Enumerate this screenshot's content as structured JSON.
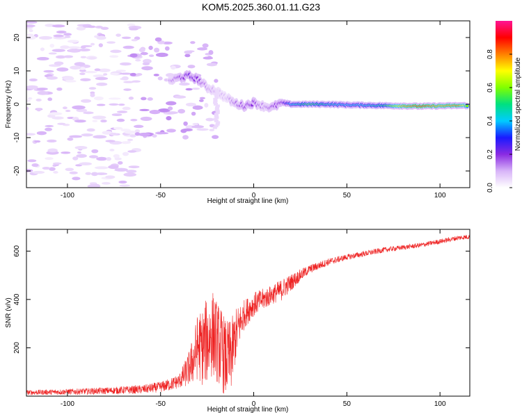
{
  "title": "KOM5.2025.360.01.11.G23",
  "colors": {
    "snr_line": "#ee2222",
    "frame": "#000000"
  },
  "chart_data": [
    {
      "type": "heatmap",
      "title": "KOM5.2025.360.01.11.G23",
      "xlabel": "Height of straight line (km)",
      "ylabel": "Frequency (Hz)",
      "xlim": [
        -122,
        116
      ],
      "ylim": [
        -25,
        25
      ],
      "xticks": [
        -100,
        -50,
        0,
        50,
        100
      ],
      "yticks": [
        -20,
        -10,
        0,
        10,
        20
      ],
      "colorbar": {
        "label": "Normalized spectral amplitude",
        "range": [
          0,
          1
        ],
        "ticks": [
          "0.0",
          "0.2",
          "0.4",
          "0.6",
          "0.8"
        ],
        "tick_values": [
          0,
          0.2,
          0.4,
          0.6,
          0.8
        ],
        "colormap": [
          "#ffffff",
          "#d8b4f8",
          "#8a2be2",
          "#1a1aff",
          "#00ccff",
          "#00e080",
          "#80ff00",
          "#ffff00",
          "#ff8000",
          "#ff0000",
          "#ff1493"
        ]
      },
      "ridge": {
        "x": [
          -45,
          -40,
          -35,
          -30,
          -25,
          -20,
          -15,
          -10,
          -5,
          0,
          5,
          10,
          15,
          20,
          30,
          40,
          50,
          60,
          70,
          80,
          90,
          100,
          110,
          115
        ],
        "freq": [
          7,
          8,
          8.5,
          7.5,
          5,
          4,
          2,
          0.3,
          -0.5,
          0.5,
          -0.5,
          -1,
          0.5,
          0,
          0,
          0,
          -0.2,
          -0.3,
          -0.4,
          -0.5,
          -0.6,
          -0.5,
          -0.4,
          -0.4
        ],
        "amplitude": [
          0.12,
          0.18,
          0.22,
          0.2,
          0.12,
          0.1,
          0.08,
          0.15,
          0.18,
          0.2,
          0.12,
          0.18,
          0.2,
          0.4,
          0.55,
          0.45,
          0.4,
          0.42,
          0.5,
          0.75,
          0.85,
          0.75,
          0.8,
          0.6
        ]
      }
    },
    {
      "type": "line",
      "xlabel": "Height of straight line (km)",
      "ylabel": "SNR (v/v)",
      "xlim": [
        -122,
        116
      ],
      "ylim": [
        0,
        690
      ],
      "xticks": [
        -100,
        -50,
        0,
        50,
        100
      ],
      "yticks": [
        200,
        400,
        600
      ],
      "series": [
        {
          "name": "SNR",
          "x": [
            -122,
            -100,
            -80,
            -60,
            -50,
            -45,
            -40,
            -35,
            -32,
            -30,
            -28,
            -25,
            -22,
            -20,
            -17,
            -15,
            -12,
            -10,
            -8,
            -5,
            0,
            5,
            10,
            15,
            20,
            25,
            30,
            40,
            50,
            60,
            70,
            80,
            90,
            100,
            110,
            116
          ],
          "y": [
            15,
            18,
            22,
            28,
            38,
            48,
            62,
            110,
            160,
            210,
            200,
            230,
            260,
            230,
            190,
            150,
            170,
            240,
            290,
            340,
            380,
            400,
            420,
            440,
            470,
            500,
            525,
            555,
            575,
            590,
            605,
            615,
            625,
            640,
            655,
            660
          ],
          "noise": [
            10,
            12,
            14,
            18,
            22,
            26,
            30,
            70,
            110,
            140,
            160,
            180,
            180,
            170,
            170,
            160,
            150,
            120,
            90,
            60,
            50,
            45,
            40,
            45,
            35,
            25,
            18,
            15,
            12,
            12,
            11,
            10,
            10,
            10,
            10,
            10
          ]
        }
      ]
    }
  ]
}
